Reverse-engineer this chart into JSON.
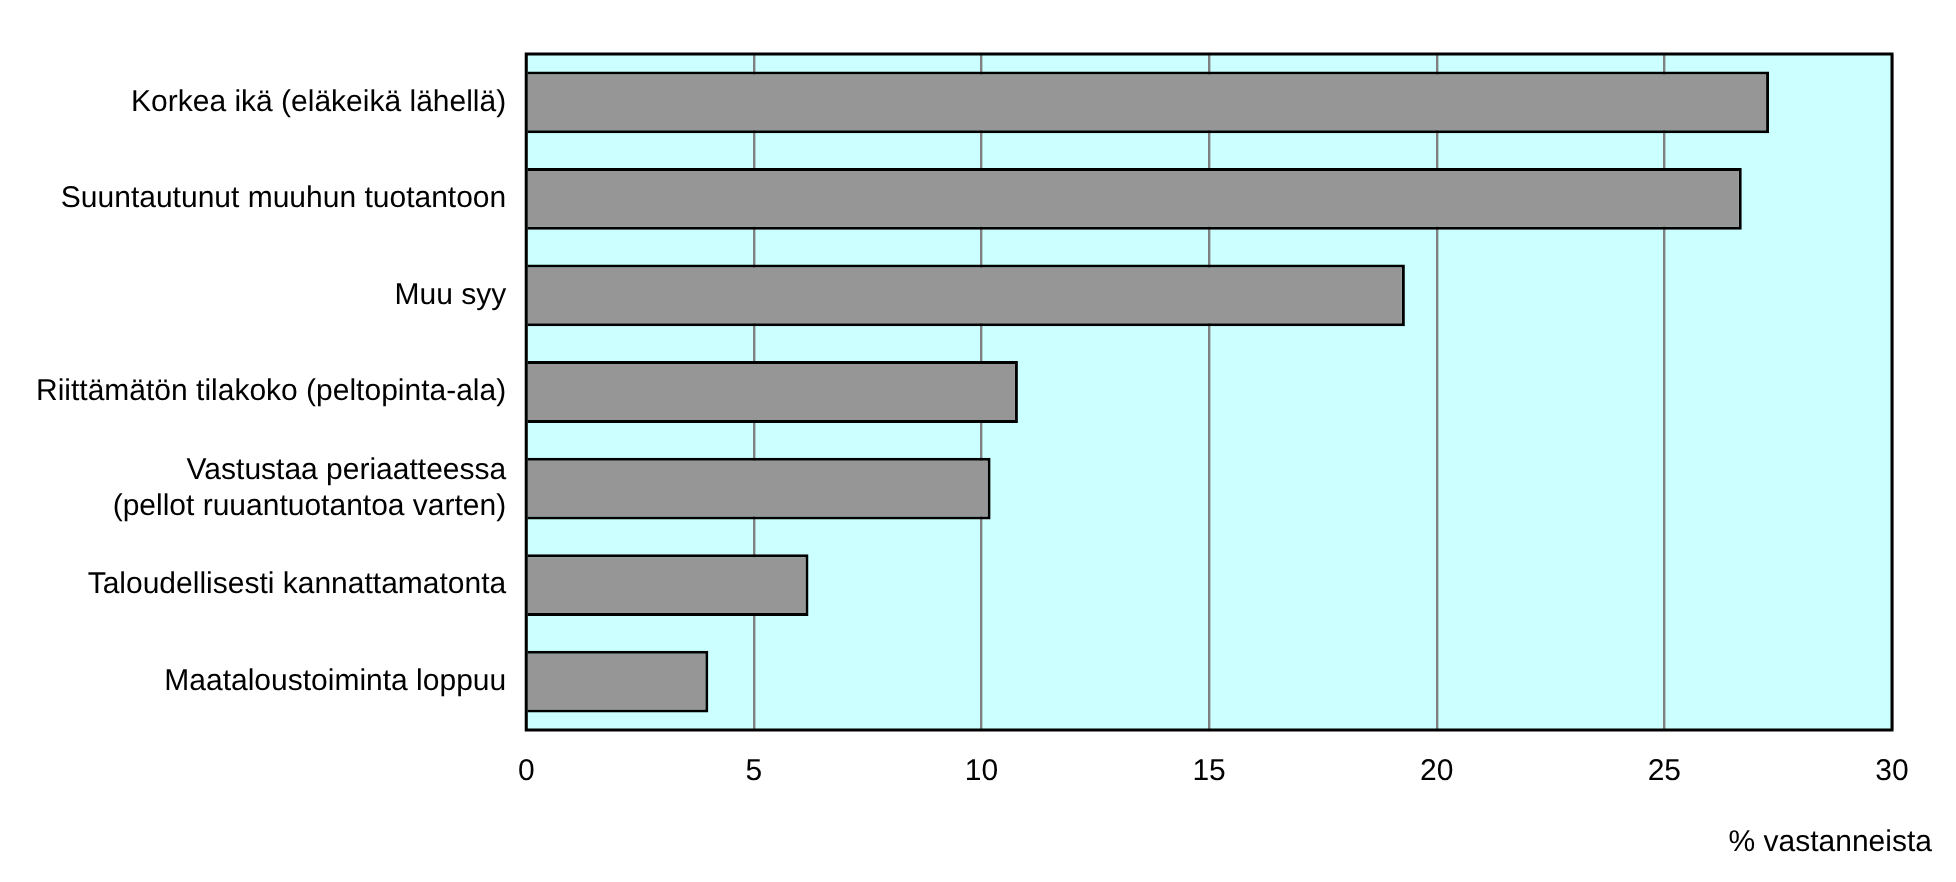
{
  "chart_data": {
    "type": "bar",
    "orientation": "horizontal",
    "xlabel": "% vastanneista",
    "categories": [
      "Korkea ikä (eläkeikä lähellä)",
      "Suuntautunut muuhun tuotantoon",
      "Muu syy",
      "Riittämätön tilakoko (peltopinta-ala)",
      "Vastustaa periaatteessa\n(pellot ruuantuotantoa varten)",
      "Taloudellisesti kannattamatonta",
      "Maataloustoiminta loppuu"
    ],
    "values": [
      27.3,
      26.7,
      19.3,
      10.8,
      10.2,
      6.2,
      4.0
    ],
    "color": "#969696",
    "xlim": [
      0,
      30
    ],
    "xticks": [
      0,
      5,
      10,
      15,
      20,
      25,
      30
    ],
    "grid": "x",
    "legend": false
  }
}
